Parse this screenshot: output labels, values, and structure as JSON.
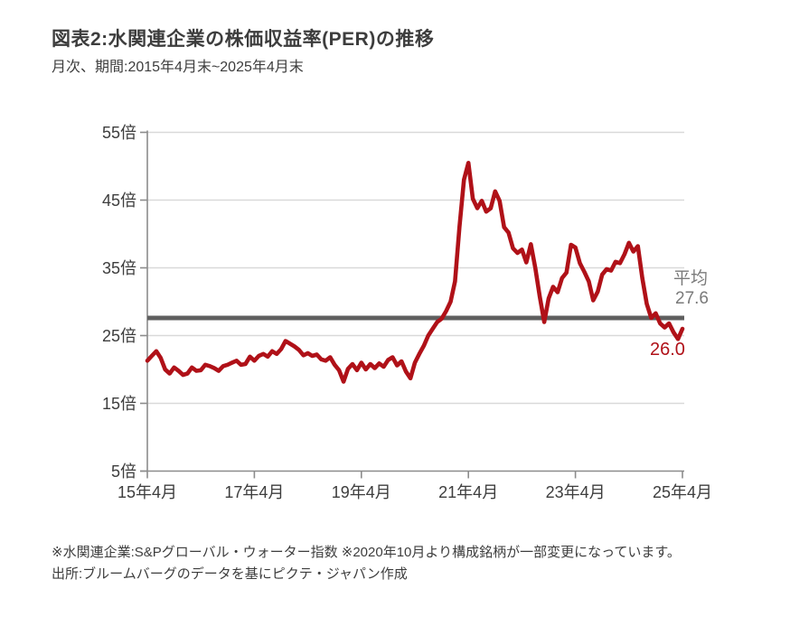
{
  "header": {
    "title": "図表2:水関連企業の株価収益率(PER)の推移",
    "subtitle": "月次、期間:2015年4月末~2025年4月末"
  },
  "chart_data": {
    "type": "line",
    "title": "水関連企業の株価収益率(PER)の推移",
    "series_name": "水関連企業PER(倍)",
    "frequency": "monthly",
    "x_start": "2015-04",
    "x_end": "2025-04",
    "values": [
      21.3,
      22.0,
      22.7,
      21.7,
      20.0,
      19.4,
      20.3,
      19.8,
      19.2,
      19.4,
      20.3,
      19.8,
      19.9,
      20.7,
      20.5,
      20.2,
      19.8,
      20.5,
      20.7,
      21.0,
      21.3,
      20.7,
      20.8,
      21.9,
      21.3,
      22.0,
      22.3,
      21.9,
      22.7,
      22.3,
      23.0,
      24.2,
      23.8,
      23.4,
      22.9,
      22.1,
      22.4,
      22.0,
      22.2,
      21.5,
      21.3,
      21.8,
      20.7,
      19.9,
      18.2,
      20.1,
      20.8,
      19.9,
      21.0,
      20.0,
      20.8,
      20.2,
      20.9,
      20.4,
      21.4,
      21.8,
      20.6,
      21.2,
      19.7,
      18.7,
      21.0,
      22.3,
      23.5,
      25.0,
      26.0,
      27.0,
      27.5,
      28.6,
      30.0,
      33.0,
      41.0,
      48.0,
      50.5,
      45.2,
      43.8,
      44.9,
      43.3,
      43.8,
      46.3,
      44.9,
      41.0,
      40.2,
      37.9,
      37.2,
      37.7,
      35.8,
      38.5,
      35.0,
      30.8,
      27.0,
      30.5,
      32.2,
      31.4,
      33.5,
      34.3,
      38.4,
      38.0,
      35.7,
      34.4,
      33.0,
      30.2,
      31.5,
      34.0,
      34.8,
      34.6,
      35.9,
      35.7,
      37.0,
      38.7,
      37.4,
      38.2,
      33.5,
      29.7,
      27.6,
      28.3,
      26.8,
      26.2,
      26.8,
      25.5,
      24.5,
      26.0
    ],
    "ylim": [
      5,
      55
    ],
    "y_tick_values": [
      55,
      45,
      35,
      25,
      15,
      5
    ],
    "y_tick_labels": [
      "55倍",
      "45倍",
      "35倍",
      "25倍",
      "15倍",
      "5倍"
    ],
    "x_tick_month_index": [
      0,
      24,
      48,
      72,
      96,
      120
    ],
    "x_tick_labels": [
      "15年4月",
      "17年4月",
      "19年4月",
      "21年4月",
      "23年4月",
      "25年4月"
    ],
    "grid": true,
    "legend_position": "none",
    "average": 27.6,
    "average_caption": "平均",
    "average_value_label": "27.6",
    "latest_value": 26.0,
    "latest_value_label": "26.0",
    "line_color": "#b01118",
    "average_line_color": "#5f5f5f",
    "grid_color": "#d9d9d9",
    "axis_color": "#8c8c8c"
  },
  "footer": {
    "note1": "※水関連企業:S&Pグローバル・ウォーター指数  ※2020年10月より構成銘柄が一部変更になっています。",
    "note2": "出所:ブルームバーグのデータを基にピクテ・ジャパン作成"
  }
}
